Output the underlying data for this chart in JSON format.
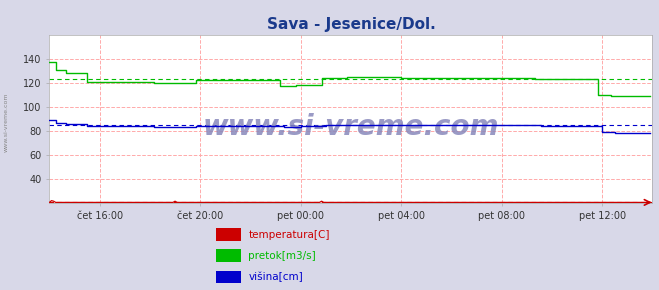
{
  "title": "Sava - Jesenice/Dol.",
  "title_color": "#1a3a8c",
  "title_fontsize": 11,
  "bg_color": "#d8d8e8",
  "plot_bg_color": "#ffffff",
  "xlim": [
    0,
    288
  ],
  "ylim": [
    20,
    160
  ],
  "yticks": [
    40,
    60,
    80,
    100,
    120,
    140
  ],
  "xtick_labels": [
    "čet 16:00",
    "čet 20:00",
    "pet 00:00",
    "pet 04:00",
    "pet 08:00",
    "pet 12:00"
  ],
  "xtick_positions": [
    24,
    72,
    120,
    168,
    216,
    264
  ],
  "grid_color": "#ffaaaa",
  "legend_labels": [
    "temperatura[C]",
    "pretok[m3/s]",
    "višina[cm]"
  ],
  "legend_colors": [
    "#cc0000",
    "#00bb00",
    "#0000cc"
  ],
  "watermark": "www.si-vreme.com",
  "watermark_color": "#8888bb",
  "n_points": 288,
  "temp_mean": 20.5,
  "pretok_mean": 123,
  "visina_mean": 85,
  "temp_color": "#cc0000",
  "pretok_color": "#00bb00",
  "visina_color": "#0000cc",
  "side_label": "www.si-vreme.com",
  "side_label_color": "#888888"
}
